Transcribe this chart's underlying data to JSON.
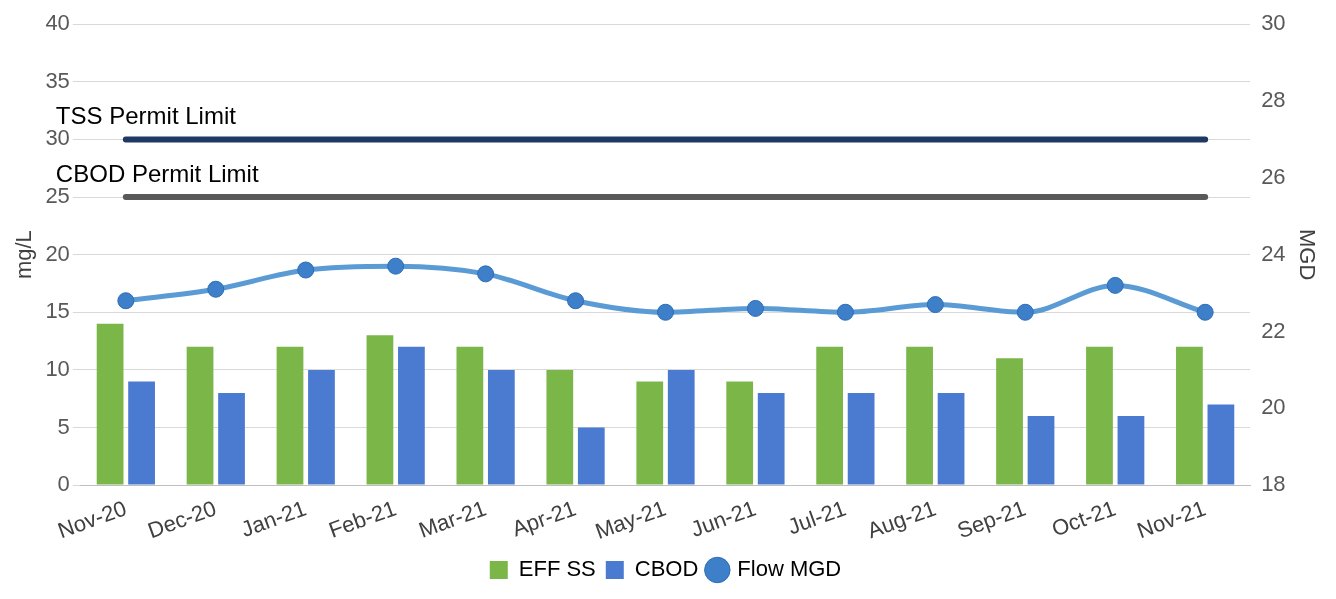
{
  "chart_data": {
    "type": "bar",
    "ylabel": "mg/L",
    "y2label": "MGD",
    "categories": [
      "Nov-20",
      "Dec-20",
      "Jan-21",
      "Feb-21",
      "Mar-21",
      "Apr-21",
      "May-21",
      "Jun-21",
      "Jul-21",
      "Aug-21",
      "Sep-21",
      "Oct-21",
      "Nov-21"
    ],
    "series": [
      {
        "name": "EFF SS",
        "color": "#7ab648",
        "values": [
          14,
          12,
          12,
          13,
          12,
          10,
          9,
          9,
          12,
          12,
          11,
          12,
          12
        ]
      },
      {
        "name": "CBOD",
        "color": "#4a7bd0",
        "values": [
          9,
          8,
          10,
          12,
          10,
          5,
          10,
          8,
          8,
          8,
          6,
          6,
          7
        ]
      },
      {
        "name": "Flow MGD",
        "type": "line",
        "axis": "y2",
        "color": "#5b9bd5",
        "marker": "circle",
        "values": [
          22.8,
          23.1,
          23.6,
          23.7,
          23.5,
          22.8,
          22.5,
          22.6,
          22.5,
          22.7,
          22.5,
          23.2,
          22.5
        ]
      }
    ],
    "ylim": [
      0,
      40
    ],
    "yticks": [
      0,
      5,
      10,
      15,
      20,
      25,
      30,
      35,
      40
    ],
    "y2lim": [
      18,
      30
    ],
    "y2ticks": [
      18,
      20,
      22,
      24,
      26,
      28,
      30
    ],
    "ref_lines": [
      {
        "axis": "y",
        "value": 30,
        "label": "TSS Permit Limit",
        "color": "#203864"
      },
      {
        "axis": "y",
        "value": 25,
        "label": "CBOD Permit Limit",
        "color": "#595959"
      }
    ],
    "grid": "y",
    "legend": "bottom"
  }
}
